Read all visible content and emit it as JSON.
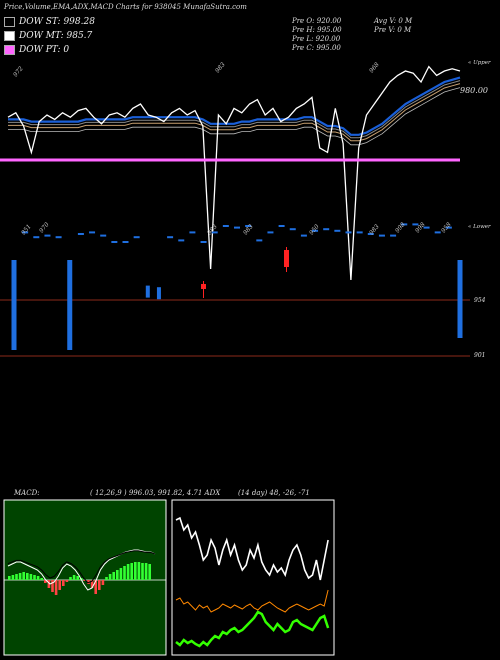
{
  "header": {
    "title": "Price,Volume,EMA,ADX,MACD Charts for 938045 MunafaSutra.com"
  },
  "legend": [
    {
      "label": "DOW ST: 998.28",
      "color": "#000000"
    },
    {
      "label": "DOW MT: 985.7",
      "color": "#ffffff"
    },
    {
      "label": "DOW PT: 0",
      "color": "#ff66ff"
    }
  ],
  "ohlc": {
    "open": "Pre  O: 920.00",
    "high": "Pre  H: 995.00",
    "low": "Pre  L: 920.00",
    "close": "Pre  C: 995.00",
    "avg_volume": "Avg V: 0  M",
    "pre_volume": "Pre  V: 0  M"
  },
  "axis_labels": {
    "upper": "« Upper",
    "lower": "« Lower",
    "price_level": "980.00",
    "level_954": "954",
    "level_901": "901"
  },
  "price_annotations": [
    "972",
    "983",
    "968",
    "980.00"
  ],
  "rotated_labels": [
    "951",
    "970",
    "983",
    "983",
    "950",
    "983",
    "998",
    "998",
    "958"
  ],
  "panels": {
    "macd_label": "MACD:",
    "macd_values": "( 12,26,9 ) 996.03, 991.82, 4.71 ADX",
    "adx_values": "(14  day) 48,  -26,  -71"
  },
  "colors": {
    "price_line": "#ffffff",
    "ema_blue": "#1a5fd8",
    "dow_pt": "#ff66ff",
    "macd_bg": "#004400",
    "macd_hist": "#33ff33",
    "adx_line_plus": "#33ff00",
    "adx_line_minus": "#ff8800"
  },
  "chart_data": [
    {
      "type": "line",
      "title": "Price,Volume,EMA,ADX,MACD Charts for 938045 MunafaSutra.com",
      "series": [
        {
          "values": [
            974,
            976,
            970,
            958,
            972,
            975,
            973,
            976,
            974,
            977,
            978,
            974,
            971,
            975,
            976,
            974,
            978,
            980,
            975,
            974,
            972,
            976,
            978,
            975,
            977,
            970,
            905,
            975,
            971,
            978,
            976,
            980,
            982,
            975,
            978,
            972,
            974,
            978,
            980,
            983,
            960,
            958,
            978,
            962,
            900,
            960,
            975,
            980,
            985,
            990,
            993,
            995,
            994,
            990,
            997,
            993,
            995,
            996,
            995
          ]
        },
        {
          "values": [
            973,
            973,
            973,
            972,
            972,
            972,
            972,
            972,
            972,
            972,
            973,
            973,
            973,
            973,
            973,
            973,
            974,
            974,
            974,
            974,
            974,
            974,
            974,
            974,
            974,
            973,
            971,
            971,
            971,
            971,
            972,
            972,
            973,
            973,
            973,
            973,
            973,
            973,
            974,
            974,
            972,
            970,
            970,
            969,
            966,
            966,
            967,
            969,
            971,
            974,
            977,
            980,
            982,
            984,
            986,
            988,
            990,
            991,
            992
          ]
        }
      ]
    },
    {
      "type": "bar",
      "title": "Volume",
      "values": [
        954,
        975,
        972,
        973,
        972,
        954,
        974,
        975,
        973,
        969,
        969,
        972,
        958,
        957,
        972,
        970,
        975,
        969,
        975,
        979,
        978,
        979,
        970,
        975,
        979,
        977,
        973,
        976,
        977,
        976,
        975,
        975,
        974,
        973,
        973,
        980,
        980,
        978,
        975,
        978,
        954
      ]
    }
  ]
}
